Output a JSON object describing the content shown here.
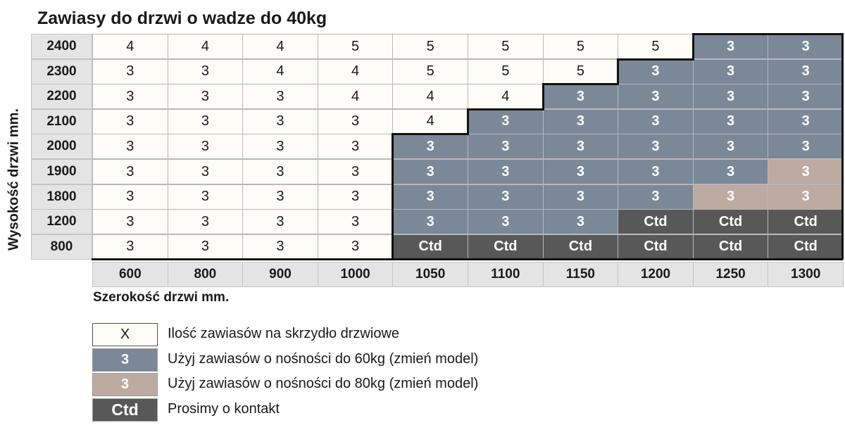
{
  "title": "Zawiasy do drzwi o wadze do 40kg",
  "chart_data": {
    "type": "table",
    "title": "Zawiasy do drzwi o wadze do 40kg",
    "xlabel": "Szerokość drzwi mm.",
    "ylabel": "Wysokość drzwi mm.",
    "columns": [
      "600",
      "800",
      "900",
      "1000",
      "1050",
      "1100",
      "1150",
      "1200",
      "1250",
      "1300"
    ],
    "rows": [
      {
        "height": "2400",
        "values": [
          "4",
          "4",
          "4",
          "5",
          "5",
          "5",
          "5",
          "5",
          "3",
          "3"
        ],
        "styles": [
          "white",
          "white",
          "white",
          "white",
          "white",
          "white",
          "white",
          "white",
          "blue",
          "blue"
        ]
      },
      {
        "height": "2300",
        "values": [
          "3",
          "3",
          "4",
          "4",
          "5",
          "5",
          "5",
          "3",
          "3",
          "3"
        ],
        "styles": [
          "white",
          "white",
          "white",
          "white",
          "white",
          "white",
          "white",
          "blue",
          "blue",
          "blue"
        ]
      },
      {
        "height": "2200",
        "values": [
          "3",
          "3",
          "3",
          "4",
          "4",
          "4",
          "3",
          "3",
          "3",
          "3"
        ],
        "styles": [
          "white",
          "white",
          "white",
          "white",
          "white",
          "white",
          "blue",
          "blue",
          "blue",
          "blue"
        ]
      },
      {
        "height": "2100",
        "values": [
          "3",
          "3",
          "3",
          "3",
          "4",
          "3",
          "3",
          "3",
          "3",
          "3"
        ],
        "styles": [
          "white",
          "white",
          "white",
          "white",
          "white",
          "blue",
          "blue",
          "blue",
          "blue",
          "blue"
        ]
      },
      {
        "height": "2000",
        "values": [
          "3",
          "3",
          "3",
          "3",
          "3",
          "3",
          "3",
          "3",
          "3",
          "3"
        ],
        "styles": [
          "white",
          "white",
          "white",
          "white",
          "blue",
          "blue",
          "blue",
          "blue",
          "blue",
          "blue"
        ]
      },
      {
        "height": "1900",
        "values": [
          "3",
          "3",
          "3",
          "3",
          "3",
          "3",
          "3",
          "3",
          "3",
          "3"
        ],
        "styles": [
          "white",
          "white",
          "white",
          "white",
          "blue",
          "blue",
          "blue",
          "blue",
          "blue",
          "tan"
        ]
      },
      {
        "height": "1800",
        "values": [
          "3",
          "3",
          "3",
          "3",
          "3",
          "3",
          "3",
          "3",
          "3",
          "3"
        ],
        "styles": [
          "white",
          "white",
          "white",
          "white",
          "blue",
          "blue",
          "blue",
          "blue",
          "tan",
          "tan"
        ]
      },
      {
        "height": "1200",
        "values": [
          "3",
          "3",
          "3",
          "3",
          "3",
          "3",
          "3",
          "Ctd",
          "Ctd",
          "Ctd"
        ],
        "styles": [
          "white",
          "white",
          "white",
          "white",
          "blue",
          "blue",
          "blue",
          "dark",
          "dark",
          "dark"
        ]
      },
      {
        "height": "800",
        "values": [
          "3",
          "3",
          "3",
          "3",
          "Ctd",
          "Ctd",
          "Ctd",
          "Ctd",
          "Ctd",
          "Ctd"
        ],
        "styles": [
          "white",
          "white",
          "white",
          "white",
          "dark",
          "dark",
          "dark",
          "dark",
          "dark",
          "dark"
        ]
      }
    ],
    "colors": {
      "white": "#fdfcf6",
      "blue": "#7a8898",
      "tan": "#bdaaa0",
      "dark": "#585858",
      "header": "#e4e4e4"
    }
  },
  "legend": [
    {
      "style": "white",
      "symbol": "X",
      "text": "Ilość zawiasów na skrzydło drzwiowe"
    },
    {
      "style": "blue",
      "symbol": "3",
      "text": "Użyj zawiasów o nośności do 60kg (zmień model)"
    },
    {
      "style": "tan",
      "symbol": "3",
      "text": "Użyj zawiasów o nośności do 80kg (zmień model)"
    },
    {
      "style": "dark",
      "symbol": "Ctd",
      "text": "Prosimy o kontakt"
    }
  ]
}
